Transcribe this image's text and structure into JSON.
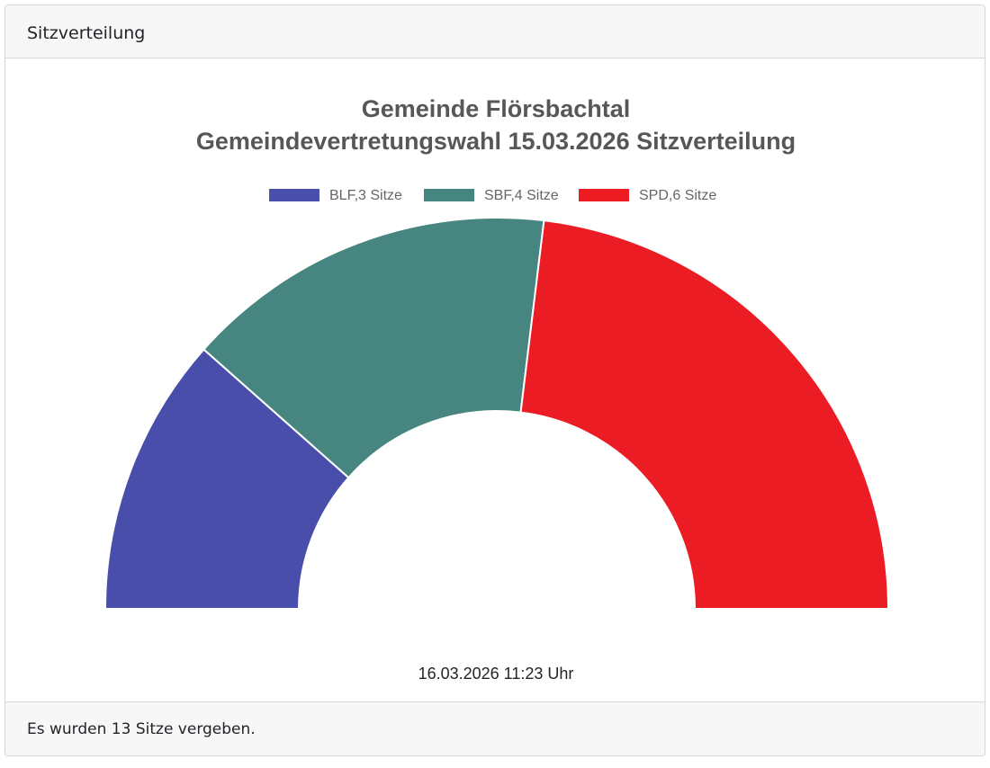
{
  "card": {
    "header_title": "Sitzverteilung",
    "footer_text": "Es wurden 13 Sitze vergeben."
  },
  "chart_data": {
    "type": "pie",
    "variant": "half-doughnut (parliament seat distribution)",
    "title": "Gemeinde Flörsbachtal",
    "subtitle": "Gemeindevertretungswahl 15.03.2026 Sitzverteilung",
    "title_line1": "Gemeinde Flörsbachtal",
    "title_line2": "Gemeindevertretungswahl 15.03.2026 Sitzverteilung",
    "categories": [
      "BLF",
      "SBF",
      "SPD"
    ],
    "values": [
      3,
      4,
      6
    ],
    "colors": [
      "#484EA9",
      "#468580",
      "#EC1C24"
    ],
    "legend": [
      {
        "label": "BLF,3 Sitze",
        "color": "#484EA9"
      },
      {
        "label": "SBF,4 Sitze",
        "color": "#468580"
      },
      {
        "label": "SPD,6 Sitze",
        "color": "#EC1C24"
      }
    ],
    "legend_position": "top",
    "total": 13,
    "timestamp": "16.03.2026 11:23 Uhr"
  }
}
